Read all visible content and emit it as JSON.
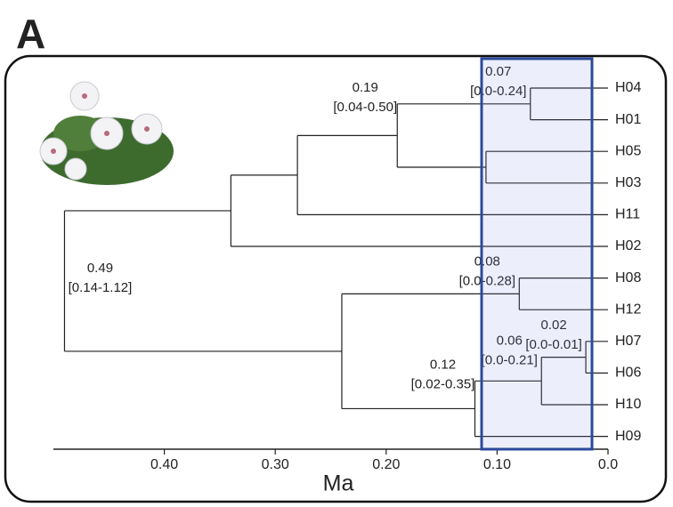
{
  "panel_label": "A",
  "chart_data": {
    "type": "dendrogram",
    "x_label": "Ma",
    "xlim": [
      0.5,
      0
    ],
    "xticks": [
      {
        "value": 0.4,
        "label": "0.40"
      },
      {
        "value": 0.3,
        "label": "0.30"
      },
      {
        "value": 0.2,
        "label": "0.20"
      },
      {
        "value": 0.1,
        "label": "0.10"
      },
      {
        "value": 0,
        "label": "0.0"
      }
    ],
    "color": "#222222",
    "tree": {
      "age": 0.49,
      "age_label": "0.49",
      "interval": "[0.14-1.12]",
      "children": [
        {
          "age": 0.34,
          "children": [
            {
              "age": 0.28,
              "children": [
                {
                  "age": 0.19,
                  "age_label": "0.19",
                  "interval": "[0.04-0.50]",
                  "children": [
                    {
                      "age": 0.07,
                      "age_label": "0.07",
                      "interval": "[0.0-0.24]",
                      "children": [
                        {
                          "name": "H04"
                        },
                        {
                          "name": "H01"
                        }
                      ]
                    },
                    {
                      "age": 0.11,
                      "children": [
                        {
                          "name": "H05"
                        },
                        {
                          "name": "H03"
                        }
                      ]
                    }
                  ]
                },
                {
                  "name": "H11"
                }
              ]
            },
            {
              "name": "H02"
            }
          ]
        },
        {
          "age": 0.24,
          "children": [
            {
              "age": 0.08,
              "age_label": "0.08",
              "interval": "[0.0-0.28]",
              "children": [
                {
                  "name": "H08"
                },
                {
                  "name": "H12"
                }
              ]
            },
            {
              "age": 0.12,
              "age_label": "0.12",
              "interval": "[0.02-0.35]",
              "children": [
                {
                  "age": 0.06,
                  "age_label": "0.06",
                  "interval": "[0.0-0.21]",
                  "children": [
                    {
                      "age": 0.02,
                      "age_label": "0.02",
                      "interval": "[0.0-0.01]",
                      "children": [
                        {
                          "name": "H07"
                        },
                        {
                          "name": "H06"
                        }
                      ]
                    },
                    {
                      "name": "H10"
                    }
                  ]
                },
                {
                  "name": "H09"
                }
              ]
            }
          ]
        }
      ]
    }
  }
}
